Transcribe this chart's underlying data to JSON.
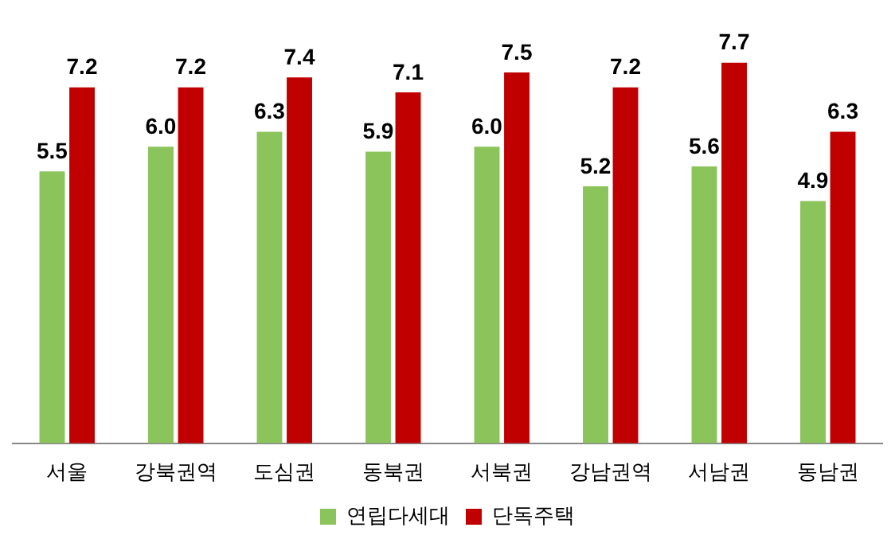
{
  "chart_data": {
    "type": "bar",
    "categories": [
      "서울",
      "강북권역",
      "도심권",
      "동북권",
      "서북권",
      "강남권역",
      "서남권",
      "동남권"
    ],
    "series": [
      {
        "name": "연립다세대",
        "color": "#8cc45c",
        "values": [
          5.5,
          6.0,
          6.3,
          5.9,
          6.0,
          5.2,
          5.6,
          4.9
        ],
        "value_labels": [
          "5.5",
          "6.0",
          "6.3",
          "5.9",
          "6.0",
          "5.2",
          "5.6",
          "4.9"
        ]
      },
      {
        "name": "단독주택",
        "color": "#c00000",
        "values": [
          7.2,
          7.2,
          7.4,
          7.1,
          7.5,
          7.2,
          7.7,
          6.3
        ],
        "value_labels": [
          "7.2",
          "7.2",
          "7.4",
          "7.1",
          "7.5",
          "7.2",
          "7.7",
          "6.3"
        ]
      }
    ],
    "tick_labels": "x",
    "grid": false,
    "legend": "bottom"
  }
}
